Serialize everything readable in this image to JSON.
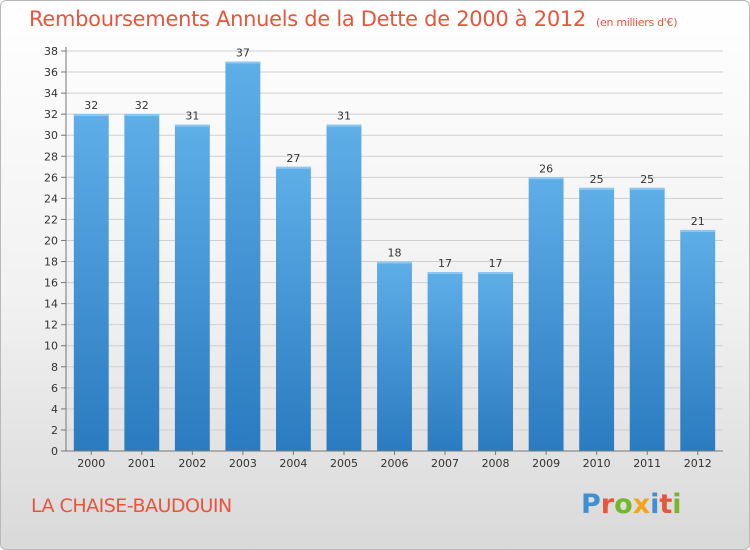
{
  "title": {
    "main": "Remboursements Annuels de la Dette de 2000 à 2012",
    "unit": "(en milliers d'€)"
  },
  "commune": "LA CHAISE-BAUDOUIN",
  "logo": {
    "text": "Proxiti",
    "letter_colors": [
      "#3f8fd2",
      "#e8553d",
      "#76b62e",
      "#f2a51c",
      "#3f8fd2",
      "#e8553d",
      "#76b62e"
    ]
  },
  "colors": {
    "bar_top": "#5eaee8",
    "bar_bottom": "#2a7bc0",
    "title": "#e8553d",
    "grid": "#cfcfcf"
  },
  "chart_data": {
    "type": "bar",
    "categories": [
      "2000",
      "2001",
      "2002",
      "2003",
      "2004",
      "2005",
      "2006",
      "2007",
      "2008",
      "2009",
      "2010",
      "2011",
      "2012"
    ],
    "values": [
      32,
      32,
      31,
      37,
      27,
      31,
      18,
      17,
      17,
      26,
      25,
      25,
      21
    ],
    "ylim": [
      0,
      38
    ],
    "yticks": [
      0,
      2,
      4,
      6,
      8,
      10,
      12,
      14,
      16,
      18,
      20,
      22,
      24,
      26,
      28,
      30,
      32,
      34,
      36,
      38
    ],
    "grid": true,
    "data_labels": true
  }
}
